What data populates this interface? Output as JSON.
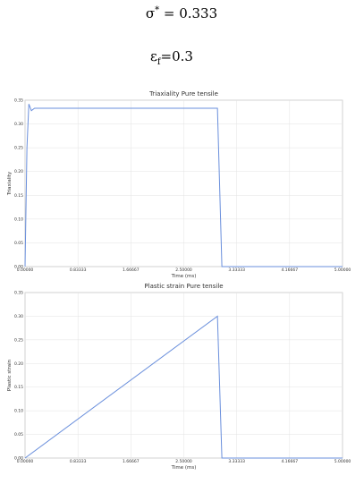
{
  "equations": [
    {
      "base": "σ",
      "sup": "*",
      "rest": " = 0.333"
    },
    {
      "base": "ε",
      "sub": "f",
      "rest": "=0.3"
    }
  ],
  "chart_data": [
    {
      "type": "line",
      "title": "Triaxiality Pure tensile",
      "x_label": "Time (ms)",
      "y_label": "Triaxiality",
      "x": [
        0,
        0.03,
        0.06,
        0.1,
        0.15,
        0.2,
        3.03,
        3.1,
        5
      ],
      "series": [
        {
          "name": "Triaxiality",
          "color": "#6a8fdc",
          "values": [
            0,
            0.25,
            0.342,
            0.328,
            0.333,
            0.333,
            0.333,
            0,
            0
          ]
        }
      ],
      "xlim": [
        0,
        5
      ],
      "ylim": [
        0,
        0.35
      ],
      "grid": true,
      "xticks": [
        {
          "value": 0,
          "label": "0.00000"
        },
        {
          "value": 0.83333,
          "label": "0.83333"
        },
        {
          "value": 1.66667,
          "label": "1.66667"
        },
        {
          "value": 2.5,
          "label": "2.50000"
        },
        {
          "value": 3.33333,
          "label": "3.33333"
        },
        {
          "value": 4.16667,
          "label": "4.16667"
        },
        {
          "value": 5,
          "label": "5.00000"
        }
      ],
      "yticks": [
        {
          "value": 0,
          "label": "0.00"
        },
        {
          "value": 0.05,
          "label": "0.05"
        },
        {
          "value": 0.1,
          "label": "0.10"
        },
        {
          "value": 0.15,
          "label": "0.15"
        },
        {
          "value": 0.2,
          "label": "0.20"
        },
        {
          "value": 0.25,
          "label": "0.25"
        },
        {
          "value": 0.3,
          "label": "0.30"
        },
        {
          "value": 0.35,
          "label": "0.35"
        }
      ]
    },
    {
      "type": "line",
      "title": "Plastic strain Pure tensile",
      "x_label": "Time (ms)",
      "y_label": "Plastic strain",
      "x": [
        0,
        3.03,
        3.1,
        5
      ],
      "series": [
        {
          "name": "Plastic strain",
          "color": "#6a8fdc",
          "values": [
            0,
            0.3,
            0,
            0
          ]
        }
      ],
      "xlim": [
        0,
        5
      ],
      "ylim": [
        0,
        0.35
      ],
      "grid": true,
      "xticks": [
        {
          "value": 0,
          "label": "0.00000"
        },
        {
          "value": 0.83333,
          "label": "0.83333"
        },
        {
          "value": 1.66667,
          "label": "1.66667"
        },
        {
          "value": 2.5,
          "label": "2.50000"
        },
        {
          "value": 3.33333,
          "label": "3.33333"
        },
        {
          "value": 4.16667,
          "label": "4.16667"
        },
        {
          "value": 5,
          "label": "5.00000"
        }
      ],
      "yticks": [
        {
          "value": 0,
          "label": "0.00"
        },
        {
          "value": 0.05,
          "label": "0.05"
        },
        {
          "value": 0.1,
          "label": "0.10"
        },
        {
          "value": 0.15,
          "label": "0.15"
        },
        {
          "value": 0.2,
          "label": "0.20"
        },
        {
          "value": 0.25,
          "label": "0.25"
        },
        {
          "value": 0.3,
          "label": "0.30"
        },
        {
          "value": 0.35,
          "label": "0.35"
        }
      ]
    }
  ]
}
